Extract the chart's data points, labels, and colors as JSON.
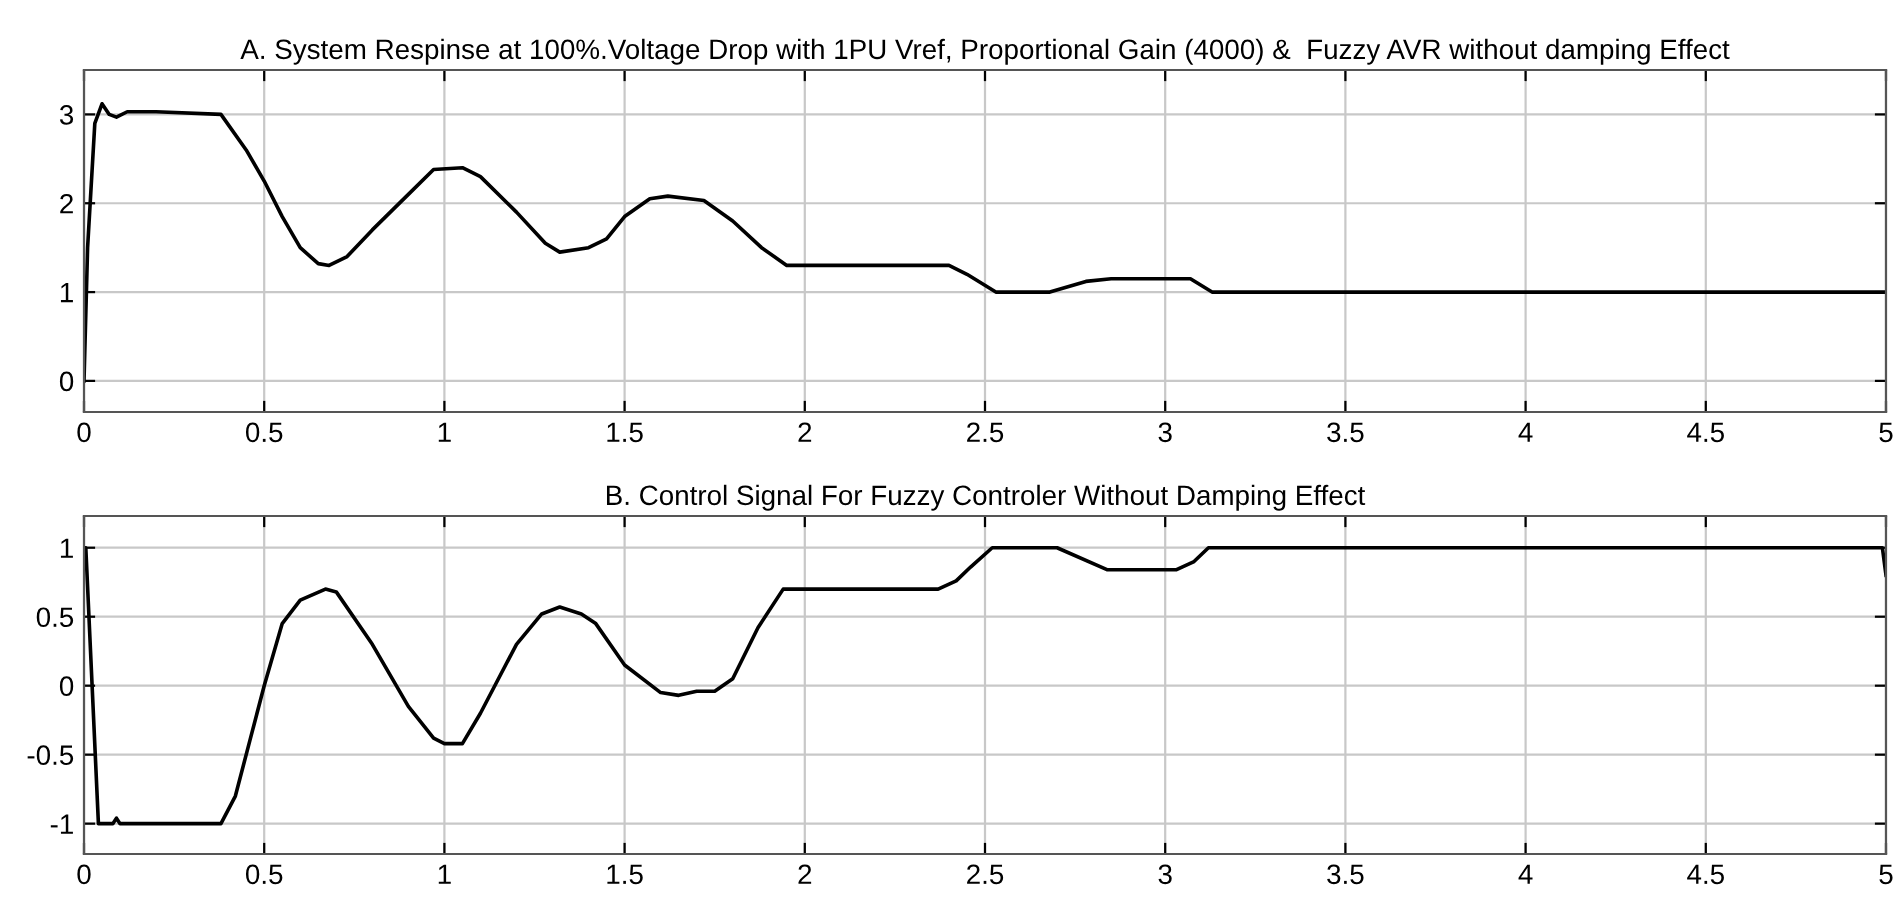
{
  "chart_data": [
    {
      "type": "line",
      "title": "A. System Respinse at 100%.Voltage Drop with 1PU Vref, Proportional Gain (4000) &  Fuzzy AVR without damping Effect",
      "xlim": [
        0,
        5
      ],
      "ylim": [
        -0.35,
        3.5
      ],
      "xticks": [
        0,
        0.5,
        1,
        1.5,
        2,
        2.5,
        3,
        3.5,
        4,
        4.5,
        5
      ],
      "yticks": [
        0,
        1,
        2,
        3
      ],
      "grid": true,
      "series": [
        {
          "color": "#000000",
          "x": [
            0,
            0.01,
            0.03,
            0.05,
            0.07,
            0.09,
            0.12,
            0.2,
            0.38,
            0.45,
            0.5,
            0.55,
            0.6,
            0.65,
            0.68,
            0.73,
            0.8,
            0.9,
            0.97,
            1.05,
            1.1,
            1.2,
            1.28,
            1.32,
            1.4,
            1.45,
            1.5,
            1.57,
            1.62,
            1.72,
            1.8,
            1.88,
            1.95,
            2.05,
            2.4,
            2.45,
            2.53,
            2.68,
            2.78,
            2.85,
            3.07,
            3.13,
            5
          ],
          "values": [
            0,
            1.5,
            2.9,
            3.12,
            3.0,
            2.97,
            3.03,
            3.03,
            3.0,
            2.6,
            2.25,
            1.85,
            1.5,
            1.32,
            1.3,
            1.4,
            1.7,
            2.1,
            2.38,
            2.4,
            2.3,
            1.9,
            1.55,
            1.45,
            1.5,
            1.6,
            1.85,
            2.05,
            2.08,
            2.03,
            1.8,
            1.5,
            1.3,
            1.3,
            1.3,
            1.2,
            1.0,
            1.0,
            1.12,
            1.15,
            1.15,
            1.0,
            1.0
          ]
        }
      ]
    },
    {
      "type": "line",
      "title": "B. Control Signal For Fuzzy Controler Without Damping Effect",
      "xlim": [
        0,
        5
      ],
      "ylim": [
        -1.22,
        1.23
      ],
      "xticks": [
        0,
        0.5,
        1,
        1.5,
        2,
        2.5,
        3,
        3.5,
        4,
        4.5,
        5
      ],
      "yticks": [
        -1,
        -0.5,
        0,
        0.5,
        1
      ],
      "grid": true,
      "series": [
        {
          "color": "#000000",
          "x": [
            0,
            0.005,
            0.04,
            0.08,
            0.09,
            0.1,
            0.38,
            0.42,
            0.46,
            0.5,
            0.55,
            0.6,
            0.67,
            0.7,
            0.8,
            0.9,
            0.97,
            1.0,
            1.05,
            1.1,
            1.2,
            1.27,
            1.32,
            1.38,
            1.42,
            1.5,
            1.6,
            1.65,
            1.7,
            1.75,
            1.8,
            1.87,
            1.94,
            2.0,
            2.37,
            2.42,
            2.46,
            2.52,
            2.7,
            2.84,
            3.03,
            3.08,
            3.12,
            4.99,
            5.0
          ],
          "values": [
            1,
            1.0,
            -1.0,
            -1.0,
            -0.96,
            -1.0,
            -1.0,
            -0.8,
            -0.4,
            0,
            0.45,
            0.62,
            0.7,
            0.68,
            0.3,
            -0.15,
            -0.38,
            -0.42,
            -0.42,
            -0.2,
            0.3,
            0.52,
            0.57,
            0.52,
            0.45,
            0.15,
            -0.05,
            -0.07,
            -0.04,
            -0.04,
            0.05,
            0.42,
            0.7,
            0.7,
            0.7,
            0.76,
            0.86,
            1.0,
            1.0,
            0.84,
            0.84,
            0.9,
            1.0,
            1.0,
            0.8
          ]
        }
      ]
    }
  ]
}
